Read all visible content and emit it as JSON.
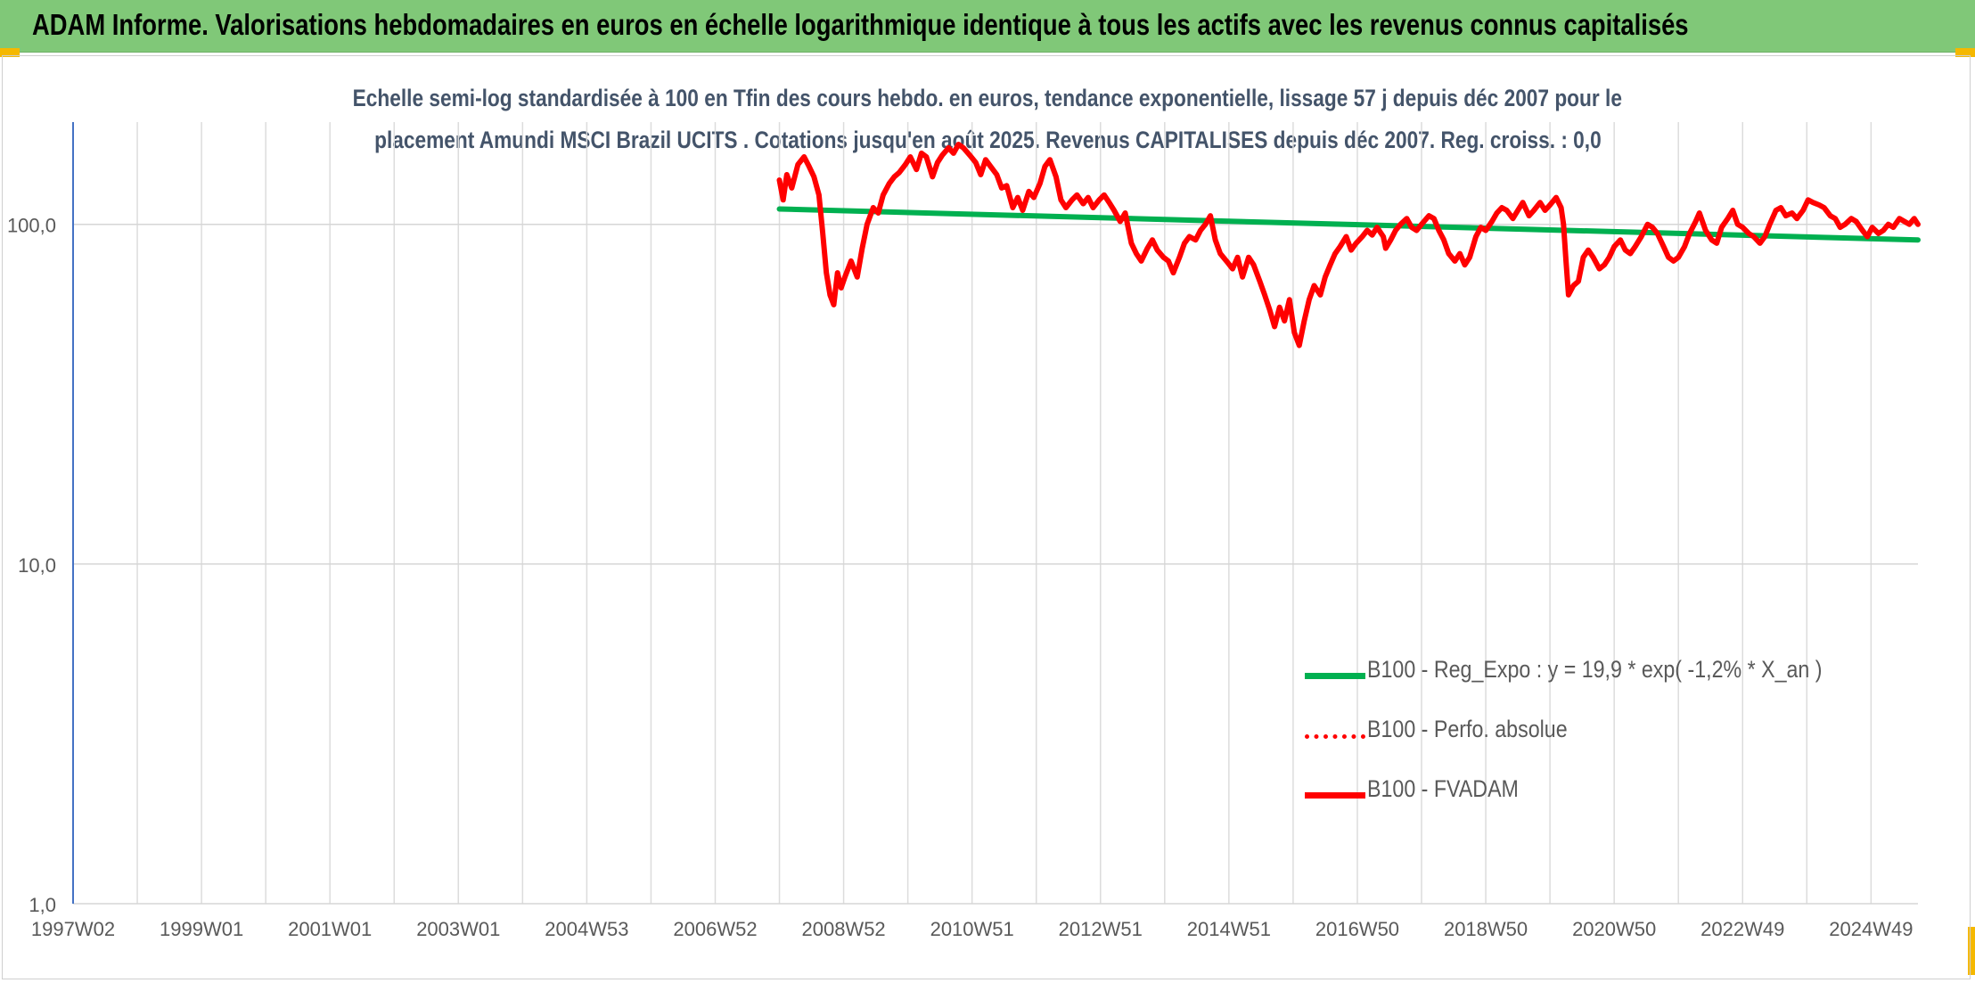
{
  "banner": {
    "title": "ADAM Informe. Valorisations hebdomadaires en euros en échelle logarithmique identique à tous les actifs avec les revenus connus capitalisés",
    "color": "#80c878"
  },
  "chart_data": {
    "type": "line",
    "title_line1": "Echelle semi-log standardisée à 100 en Tfin des cours hebdo. en euros, tendance exponentielle, lissage 57 j depuis déc 2007 pour le",
    "title_line2": "placement Amundi MSCI Brazil UCITS . Cotations jusqu'en août 2025. Revenus CAPITALISES depuis déc 2007. Reg. croiss. : 0,0",
    "y_scale": "log",
    "ylim": [
      1,
      200
    ],
    "y_ticks": [
      {
        "value": 1,
        "label": "1,0"
      },
      {
        "value": 10,
        "label": "10,0"
      },
      {
        "value": 100,
        "label": "100,0"
      }
    ],
    "xlim": [
      "1997-01-06",
      "2025-08-25"
    ],
    "x_ticks": [
      {
        "date": "1997-01-06",
        "label": "1997W02"
      },
      {
        "date": "1999-01-04",
        "label": "1999W01"
      },
      {
        "date": "2001-01-01",
        "label": "2001W01"
      },
      {
        "date": "2002-12-30",
        "label": "2003W01"
      },
      {
        "date": "2004-12-27",
        "label": "2004W53"
      },
      {
        "date": "2006-12-25",
        "label": "2006W52"
      },
      {
        "date": "2008-12-22",
        "label": "2008W52"
      },
      {
        "date": "2010-12-20",
        "label": "2010W51"
      },
      {
        "date": "2012-12-17",
        "label": "2012W51"
      },
      {
        "date": "2014-12-15",
        "label": "2014W51"
      },
      {
        "date": "2016-12-12",
        "label": "2016W50"
      },
      {
        "date": "2018-12-10",
        "label": "2018W50"
      },
      {
        "date": "2020-12-07",
        "label": "2020W50"
      },
      {
        "date": "2022-12-05",
        "label": "2022W49"
      },
      {
        "date": "2024-12-02",
        "label": "2024W49"
      }
    ],
    "legend_position": "bottom-right",
    "grid": true,
    "series": [
      {
        "name": "B100 - Reg_Expo : y = 19,9 * exp( -1,2% *  X_an )",
        "color": "#00b050",
        "style": "solid",
        "points": [
          [
            "2007-12-24",
            111
          ],
          [
            "2025-08-25",
            90
          ]
        ]
      },
      {
        "name": "B100 - Perfo. absolue",
        "color": "#ff0000",
        "style": "dotted",
        "points": []
      },
      {
        "name": "B100 - FVADAM",
        "color": "#ff0000",
        "style": "solid",
        "points": [
          [
            "2007-12-24",
            135
          ],
          [
            "2008-01-14",
            118
          ],
          [
            "2008-02-04",
            140
          ],
          [
            "2008-03-03",
            128
          ],
          [
            "2008-04-07",
            150
          ],
          [
            "2008-05-12",
            158
          ],
          [
            "2008-06-09",
            148
          ],
          [
            "2008-07-07",
            138
          ],
          [
            "2008-08-04",
            122
          ],
          [
            "2008-08-25",
            95
          ],
          [
            "2008-09-15",
            72
          ],
          [
            "2008-10-06",
            62
          ],
          [
            "2008-10-27",
            58
          ],
          [
            "2008-11-17",
            72
          ],
          [
            "2008-12-08",
            65
          ],
          [
            "2008-12-29",
            70
          ],
          [
            "2009-02-02",
            78
          ],
          [
            "2009-03-09",
            70
          ],
          [
            "2009-04-06",
            85
          ],
          [
            "2009-05-04",
            100
          ],
          [
            "2009-06-08",
            112
          ],
          [
            "2009-07-06",
            108
          ],
          [
            "2009-08-03",
            122
          ],
          [
            "2009-09-07",
            132
          ],
          [
            "2009-10-05",
            138
          ],
          [
            "2009-11-02",
            142
          ],
          [
            "2009-12-07",
            150
          ],
          [
            "2010-01-04",
            158
          ],
          [
            "2010-02-08",
            145
          ],
          [
            "2010-03-08",
            162
          ],
          [
            "2010-04-05",
            158
          ],
          [
            "2010-05-10",
            138
          ],
          [
            "2010-06-07",
            152
          ],
          [
            "2010-07-05",
            160
          ],
          [
            "2010-08-09",
            168
          ],
          [
            "2010-09-06",
            162
          ],
          [
            "2010-10-04",
            172
          ],
          [
            "2010-11-01",
            168
          ],
          [
            "2010-12-06",
            160
          ],
          [
            "2011-01-10",
            152
          ],
          [
            "2011-02-07",
            140
          ],
          [
            "2011-03-07",
            155
          ],
          [
            "2011-04-04",
            148
          ],
          [
            "2011-05-09",
            140
          ],
          [
            "2011-06-06",
            128
          ],
          [
            "2011-07-04",
            130
          ],
          [
            "2011-08-08",
            112
          ],
          [
            "2011-09-05",
            120
          ],
          [
            "2011-10-03",
            110
          ],
          [
            "2011-11-07",
            125
          ],
          [
            "2011-12-05",
            120
          ],
          [
            "2012-01-09",
            132
          ],
          [
            "2012-02-06",
            148
          ],
          [
            "2012-03-05",
            155
          ],
          [
            "2012-04-09",
            138
          ],
          [
            "2012-05-07",
            118
          ],
          [
            "2012-06-04",
            112
          ],
          [
            "2012-07-09",
            118
          ],
          [
            "2012-08-06",
            122
          ],
          [
            "2012-09-10",
            115
          ],
          [
            "2012-10-08",
            120
          ],
          [
            "2012-11-05",
            112
          ],
          [
            "2012-12-10",
            118
          ],
          [
            "2013-01-07",
            122
          ],
          [
            "2013-02-04",
            116
          ],
          [
            "2013-03-04",
            110
          ],
          [
            "2013-04-08",
            102
          ],
          [
            "2013-05-06",
            108
          ],
          [
            "2013-06-10",
            88
          ],
          [
            "2013-07-08",
            82
          ],
          [
            "2013-08-05",
            78
          ],
          [
            "2013-09-09",
            85
          ],
          [
            "2013-10-07",
            90
          ],
          [
            "2013-11-04",
            84
          ],
          [
            "2013-12-09",
            80
          ],
          [
            "2014-01-06",
            78
          ],
          [
            "2014-02-03",
            72
          ],
          [
            "2014-03-10",
            80
          ],
          [
            "2014-04-07",
            88
          ],
          [
            "2014-05-05",
            92
          ],
          [
            "2014-06-09",
            90
          ],
          [
            "2014-07-07",
            96
          ],
          [
            "2014-08-04",
            100
          ],
          [
            "2014-09-01",
            106
          ],
          [
            "2014-09-29",
            90
          ],
          [
            "2014-10-27",
            82
          ],
          [
            "2014-12-01",
            78
          ],
          [
            "2015-01-05",
            74
          ],
          [
            "2015-02-02",
            80
          ],
          [
            "2015-03-02",
            70
          ],
          [
            "2015-04-06",
            80
          ],
          [
            "2015-05-04",
            76
          ],
          [
            "2015-06-08",
            68
          ],
          [
            "2015-07-06",
            62
          ],
          [
            "2015-08-03",
            56
          ],
          [
            "2015-08-31",
            50
          ],
          [
            "2015-09-28",
            57
          ],
          [
            "2015-10-26",
            52
          ],
          [
            "2015-11-23",
            60
          ],
          [
            "2015-12-21",
            48
          ],
          [
            "2016-01-18",
            44
          ],
          [
            "2016-02-15",
            52
          ],
          [
            "2016-03-14",
            60
          ],
          [
            "2016-04-11",
            66
          ],
          [
            "2016-05-16",
            62
          ],
          [
            "2016-06-13",
            70
          ],
          [
            "2016-07-11",
            76
          ],
          [
            "2016-08-08",
            82
          ],
          [
            "2016-09-05",
            86
          ],
          [
            "2016-10-10",
            92
          ],
          [
            "2016-11-07",
            84
          ],
          [
            "2016-12-05",
            88
          ],
          [
            "2017-01-09",
            92
          ],
          [
            "2017-02-06",
            96
          ],
          [
            "2017-03-06",
            93
          ],
          [
            "2017-04-03",
            98
          ],
          [
            "2017-05-08",
            92
          ],
          [
            "2017-05-22",
            85
          ],
          [
            "2017-06-19",
            90
          ],
          [
            "2017-07-17",
            96
          ],
          [
            "2017-08-14",
            100
          ],
          [
            "2017-09-18",
            104
          ],
          [
            "2017-10-16",
            98
          ],
          [
            "2017-11-13",
            96
          ],
          [
            "2017-12-11",
            100
          ],
          [
            "2018-01-22",
            106
          ],
          [
            "2018-02-19",
            104
          ],
          [
            "2018-03-19",
            96
          ],
          [
            "2018-04-16",
            90
          ],
          [
            "2018-05-14",
            82
          ],
          [
            "2018-06-18",
            78
          ],
          [
            "2018-07-16",
            82
          ],
          [
            "2018-08-13",
            76
          ],
          [
            "2018-09-10",
            80
          ],
          [
            "2018-10-15",
            92
          ],
          [
            "2018-11-12",
            98
          ],
          [
            "2018-12-10",
            96
          ],
          [
            "2019-01-14",
            102
          ],
          [
            "2019-02-11",
            108
          ],
          [
            "2019-03-11",
            112
          ],
          [
            "2019-04-08",
            110
          ],
          [
            "2019-05-13",
            104
          ],
          [
            "2019-06-10",
            110
          ],
          [
            "2019-07-08",
            116
          ],
          [
            "2019-08-12",
            106
          ],
          [
            "2019-09-09",
            110
          ],
          [
            "2019-10-14",
            116
          ],
          [
            "2019-11-11",
            110
          ],
          [
            "2019-12-09",
            114
          ],
          [
            "2020-01-13",
            120
          ],
          [
            "2020-02-10",
            112
          ],
          [
            "2020-02-24",
            100
          ],
          [
            "2020-03-09",
            78
          ],
          [
            "2020-03-23",
            62
          ],
          [
            "2020-04-20",
            66
          ],
          [
            "2020-05-18",
            68
          ],
          [
            "2020-06-15",
            80
          ],
          [
            "2020-07-13",
            84
          ],
          [
            "2020-08-10",
            80
          ],
          [
            "2020-09-14",
            74
          ],
          [
            "2020-10-12",
            76
          ],
          [
            "2020-11-09",
            80
          ],
          [
            "2020-12-07",
            86
          ],
          [
            "2021-01-11",
            90
          ],
          [
            "2021-02-08",
            84
          ],
          [
            "2021-03-08",
            82
          ],
          [
            "2021-04-05",
            86
          ],
          [
            "2021-05-10",
            92
          ],
          [
            "2021-06-14",
            100
          ],
          [
            "2021-07-12",
            98
          ],
          [
            "2021-08-09",
            94
          ],
          [
            "2021-09-13",
            86
          ],
          [
            "2021-10-11",
            80
          ],
          [
            "2021-11-08",
            78
          ],
          [
            "2021-12-06",
            80
          ],
          [
            "2022-01-10",
            86
          ],
          [
            "2022-02-07",
            94
          ],
          [
            "2022-03-14",
            102
          ],
          [
            "2022-04-04",
            108
          ],
          [
            "2022-05-09",
            96
          ],
          [
            "2022-06-13",
            90
          ],
          [
            "2022-07-11",
            88
          ],
          [
            "2022-08-08",
            98
          ],
          [
            "2022-09-12",
            104
          ],
          [
            "2022-10-10",
            110
          ],
          [
            "2022-11-07",
            100
          ],
          [
            "2022-12-05",
            98
          ],
          [
            "2023-01-09",
            94
          ],
          [
            "2023-02-06",
            92
          ],
          [
            "2023-03-13",
            88
          ],
          [
            "2023-04-10",
            92
          ],
          [
            "2023-05-08",
            100
          ],
          [
            "2023-06-12",
            110
          ],
          [
            "2023-07-10",
            112
          ],
          [
            "2023-08-07",
            106
          ],
          [
            "2023-09-11",
            108
          ],
          [
            "2023-10-09",
            104
          ],
          [
            "2023-11-13",
            110
          ],
          [
            "2023-12-11",
            118
          ],
          [
            "2024-01-08",
            116
          ],
          [
            "2024-02-12",
            114
          ],
          [
            "2024-03-11",
            112
          ],
          [
            "2024-04-15",
            106
          ],
          [
            "2024-05-13",
            104
          ],
          [
            "2024-06-10",
            98
          ],
          [
            "2024-07-08",
            100
          ],
          [
            "2024-08-12",
            104
          ],
          [
            "2024-09-09",
            102
          ],
          [
            "2024-10-14",
            96
          ],
          [
            "2024-11-11",
            92
          ],
          [
            "2024-12-09",
            98
          ],
          [
            "2025-01-13",
            94
          ],
          [
            "2025-02-10",
            96
          ],
          [
            "2025-03-10",
            100
          ],
          [
            "2025-04-07",
            98
          ],
          [
            "2025-05-12",
            104
          ],
          [
            "2025-06-09",
            102
          ],
          [
            "2025-07-07",
            100
          ],
          [
            "2025-08-04",
            104
          ],
          [
            "2025-08-25",
            100
          ]
        ]
      }
    ]
  }
}
